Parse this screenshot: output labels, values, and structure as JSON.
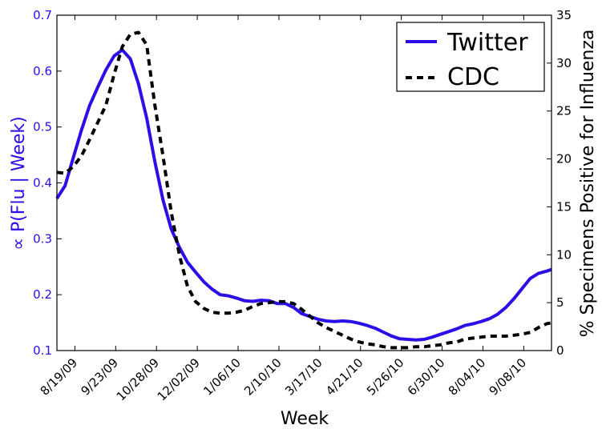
{
  "chart_data": {
    "type": "line",
    "title": "",
    "xlabel": "Week",
    "ylabel_left": "∝ P(Flu | Week)",
    "ylabel_right": "% Specimens Positive for Influenza",
    "ylim_left": [
      0.1,
      0.7
    ],
    "ylim_right": [
      0,
      35
    ],
    "yticks_left": [
      "0.1",
      "0.2",
      "0.3",
      "0.4",
      "0.5",
      "0.6",
      "0.7"
    ],
    "yticks_right": [
      "0",
      "5",
      "10",
      "15",
      "20",
      "25",
      "30",
      "35"
    ],
    "xlim": [
      -0.2,
      60.4
    ],
    "x_tick_positions": [
      2,
      7,
      12,
      17,
      22,
      27,
      32,
      37,
      42,
      47,
      52,
      57
    ],
    "x_tick_labels": [
      "8/19/09",
      "9/23/09",
      "10/28/09",
      "12/02/09",
      "1/06/10",
      "2/10/10",
      "3/17/10",
      "4/21/10",
      "5/26/10",
      "6/30/10",
      "8/04/10",
      "9/08/10"
    ],
    "legend_position": "top-right",
    "grid": false,
    "series": [
      {
        "name": "Twitter",
        "axis": "left",
        "color": "#2a0fe6",
        "style": "solid",
        "x": [
          -0.2,
          0.8,
          1.8,
          2.8,
          3.8,
          4.8,
          5.8,
          6.8,
          7.8,
          8.8,
          9.8,
          10.8,
          11.8,
          12.8,
          13.8,
          14.8,
          15.8,
          16.8,
          17.8,
          18.8,
          19.8,
          20.8,
          21.8,
          22.8,
          23.8,
          24.8,
          25.8,
          26.8,
          27.8,
          28.8,
          29.8,
          30.8,
          31.8,
          32.8,
          33.8,
          34.8,
          35.8,
          36.8,
          37.8,
          38.8,
          39.8,
          40.8,
          41.8,
          42.8,
          43.8,
          44.8,
          45.8,
          46.8,
          47.8,
          48.8,
          49.8,
          50.8,
          51.8,
          52.8,
          53.8,
          54.8,
          55.8,
          56.8,
          57.8,
          58.8,
          59.8,
          60.4
        ],
        "y": [
          0.372,
          0.395,
          0.445,
          0.494,
          0.538,
          0.571,
          0.602,
          0.627,
          0.638,
          0.622,
          0.577,
          0.516,
          0.438,
          0.369,
          0.318,
          0.285,
          0.258,
          0.24,
          0.223,
          0.21,
          0.2,
          0.198,
          0.194,
          0.189,
          0.188,
          0.19,
          0.189,
          0.184,
          0.184,
          0.177,
          0.166,
          0.161,
          0.156,
          0.153,
          0.152,
          0.153,
          0.152,
          0.149,
          0.145,
          0.14,
          0.133,
          0.126,
          0.121,
          0.12,
          0.119,
          0.12,
          0.124,
          0.129,
          0.134,
          0.139,
          0.145,
          0.148,
          0.152,
          0.157,
          0.165,
          0.177,
          0.193,
          0.211,
          0.229,
          0.238,
          0.242,
          0.245
        ]
      },
      {
        "name": "CDC",
        "axis": "right",
        "color": "#000000",
        "style": "dashed",
        "x": [
          -0.2,
          0.8,
          1.8,
          2.8,
          3.8,
          4.8,
          5.8,
          6.8,
          7.8,
          8.8,
          9.8,
          10.8,
          11.8,
          12.8,
          13.8,
          14.8,
          15.8,
          16.8,
          17.8,
          18.8,
          19.8,
          20.8,
          21.8,
          22.8,
          23.8,
          24.8,
          25.8,
          26.8,
          27.8,
          28.8,
          29.8,
          30.8,
          31.8,
          32.8,
          33.8,
          34.8,
          35.8,
          36.8,
          37.8,
          38.8,
          39.8,
          40.8,
          41.8,
          42.8,
          43.8,
          44.8,
          45.8,
          46.8,
          47.8,
          48.8,
          49.8,
          50.8,
          51.8,
          52.8,
          53.8,
          54.8,
          55.8,
          56.8,
          57.8,
          58.8,
          59.8,
          60.4
        ],
        "y": [
          18.6,
          18.5,
          19.2,
          20.3,
          22.0,
          23.8,
          25.6,
          28.8,
          31.7,
          33.0,
          33.2,
          31.9,
          25.6,
          20.3,
          14.5,
          10.0,
          6.7,
          5.1,
          4.4,
          4.0,
          3.9,
          3.9,
          4.0,
          4.2,
          4.6,
          4.9,
          5.0,
          5.1,
          5.1,
          4.9,
          4.3,
          3.6,
          2.9,
          2.4,
          2.0,
          1.6,
          1.2,
          0.9,
          0.7,
          0.6,
          0.4,
          0.3,
          0.3,
          0.3,
          0.4,
          0.4,
          0.5,
          0.6,
          0.8,
          0.9,
          1.2,
          1.3,
          1.4,
          1.5,
          1.5,
          1.5,
          1.6,
          1.7,
          1.9,
          2.4,
          2.8,
          2.9
        ]
      }
    ]
  }
}
